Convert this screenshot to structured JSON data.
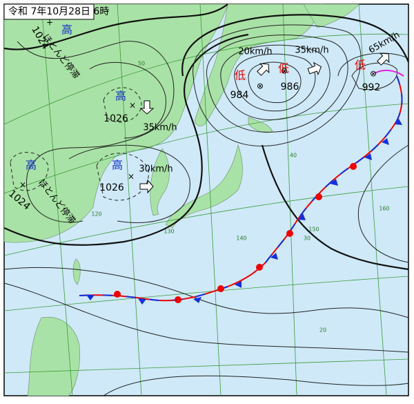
{
  "header": {
    "title": "令和 7年10月28日 6時"
  },
  "pressure_systems": [
    {
      "kind": "高",
      "pressure": "1024",
      "motion": "ほとんど停滞"
    },
    {
      "kind": "高",
      "pressure": "1026",
      "motion": "35km/h"
    },
    {
      "kind": "高",
      "pressure": "1026",
      "motion": "30km/h"
    },
    {
      "kind": "高",
      "pressure": "1024",
      "motion": "ほとんど停滞"
    },
    {
      "kind": "低",
      "pressure": "984",
      "motion": "20km/h"
    },
    {
      "kind": "低",
      "pressure": "986",
      "motion": "35km/h"
    },
    {
      "kind": "低",
      "pressure": "992",
      "motion": "65km/h"
    }
  ],
  "grid_labels": [
    "50",
    "40",
    "30",
    "20",
    "120",
    "130",
    "140",
    "150",
    "160"
  ]
}
